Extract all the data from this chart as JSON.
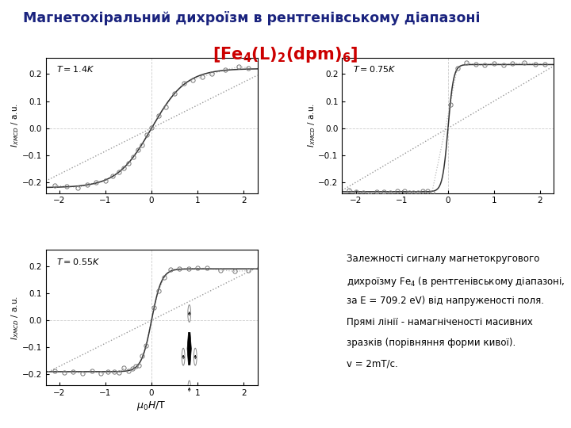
{
  "title": "Магнетохіральний дихроїзм в рентгенівському діапазоні",
  "title_color": "#1a237e",
  "subtitle_parts": [
    {
      "text": "[Fe",
      "sub": false
    },
    {
      "text": "4",
      "sub": true
    },
    {
      "text": "(L)",
      "sub": false
    },
    {
      "text": "2",
      "sub": true
    },
    {
      "text": "(dpm)",
      "sub": false
    },
    {
      "text": "6",
      "sub": true
    },
    {
      "text": "]",
      "sub": false
    }
  ],
  "subtitle_color": "#cc0000",
  "T_labels": [
    "T = 1.4 K",
    "T = 0.75 K",
    "T = 0.55 K"
  ],
  "B_sats": [
    0.75,
    0.12,
    0.22
  ],
  "scales": [
    0.22,
    0.235,
    0.19
  ],
  "linear_slopes": [
    0.085,
    0.1,
    0.085
  ],
  "ylabel": "$I_{XMCD}$ / a.u.",
  "xlabel": "$\\mu_0 H$/T",
  "xlim": [
    -2.3,
    2.3
  ],
  "ylim": [
    -0.24,
    0.26
  ],
  "yticks": [
    -0.2,
    -0.1,
    0.0,
    0.1,
    0.2
  ],
  "xticks": [
    -2,
    -1,
    0,
    1,
    2
  ],
  "annotation_line1": "Залежності сигналу магнетокругового",
  "annotation_line2": "дихроїзму Fe",
  "annotation_line2b": "4",
  "annotation_line2c": " (в рентгенівському діапазоні,",
  "annotation_line3": "за E = 709.2 eV) від напруженості поля.",
  "annotation_line4": "Прямі лінії - намагніченості масивних",
  "annotation_line5": "зразків (порівняння форми кивої).",
  "annotation_line6": "v = 2mT/c.",
  "data_color": "#888888",
  "line_color": "#333333",
  "dotted_color": "#bbbbbb",
  "background": "#ffffff"
}
